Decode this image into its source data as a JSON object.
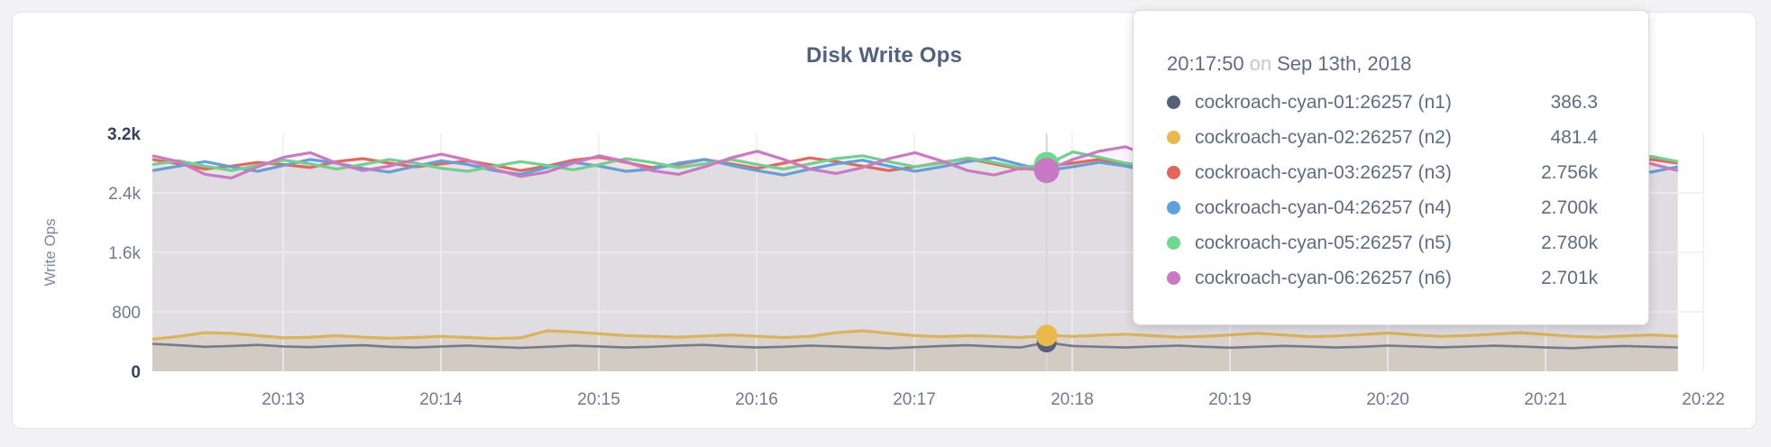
{
  "header": {
    "title": "Disk Write Ops"
  },
  "tooltip": {
    "time": "20:17:50",
    "separator": "on",
    "date": "Sep 13th, 2018",
    "rows": [
      {
        "label": "cockroach-cyan-01:26257 (n1)",
        "value": "386.3",
        "color": "#57607a"
      },
      {
        "label": "cockroach-cyan-02:26257 (n2)",
        "value": "481.4",
        "color": "#eab94d"
      },
      {
        "label": "cockroach-cyan-03:26257 (n3)",
        "value": "2.756k",
        "color": "#e5655c"
      },
      {
        "label": "cockroach-cyan-04:26257 (n4)",
        "value": "2.700k",
        "color": "#5ea2dd"
      },
      {
        "label": "cockroach-cyan-05:26257 (n5)",
        "value": "2.780k",
        "color": "#6fd88d"
      },
      {
        "label": "cockroach-cyan-06:26257 (n6)",
        "value": "2.701k",
        "color": "#c878c4"
      }
    ]
  },
  "chart_data": {
    "type": "line",
    "title": "Disk Write Ops",
    "xlabel": "",
    "ylabel": "Write Ops",
    "ylim": [
      0,
      3200
    ],
    "grid": true,
    "x_start": "20:12:10",
    "x_end": "20:21:50",
    "x_interval_seconds": 10,
    "x_tick_labels": [
      "20:13",
      "20:14",
      "20:15",
      "20:16",
      "20:17",
      "20:18",
      "20:19",
      "20:20",
      "20:21",
      "20:22"
    ],
    "y_ticks": [
      {
        "label": "0",
        "value": 0,
        "strong": true
      },
      {
        "label": "800",
        "value": 800,
        "strong": false
      },
      {
        "label": "1.6k",
        "value": 1600,
        "strong": false
      },
      {
        "label": "2.4k",
        "value": 2400,
        "strong": false
      },
      {
        "label": "3.2k",
        "value": 3200,
        "strong": true
      }
    ],
    "hover_time": "20:17:50",
    "hover_index": 34,
    "hover_dot_order": [
      3,
      2,
      0,
      1,
      4,
      5
    ],
    "series": [
      {
        "id": "n1",
        "name": "cockroach-cyan-01:26257 (n1)",
        "color": "#747b8c",
        "dot_color": "#57607a",
        "fill_opacity": 0.1,
        "width": 2.6,
        "dot_radius": 11,
        "values": [
          370,
          350,
          330,
          340,
          355,
          335,
          325,
          340,
          350,
          330,
          320,
          335,
          345,
          330,
          315,
          330,
          345,
          335,
          320,
          330,
          345,
          355,
          335,
          320,
          330,
          345,
          335,
          320,
          310,
          325,
          340,
          350,
          335,
          320,
          386.3,
          340,
          330,
          320,
          335,
          345,
          330,
          318,
          330,
          342,
          332,
          320,
          330,
          345,
          335,
          322,
          332,
          344,
          334,
          320,
          312,
          328,
          340,
          330,
          320
        ]
      },
      {
        "id": "n2",
        "name": "cockroach-cyan-02:26257 (n2)",
        "color": "#d9b35d",
        "dot_color": "#eab94d",
        "fill_opacity": 0.2,
        "width": 3.2,
        "dot_radius": 12,
        "values": [
          430,
          470,
          520,
          510,
          480,
          450,
          460,
          480,
          460,
          445,
          455,
          470,
          455,
          440,
          450,
          545,
          530,
          505,
          480,
          470,
          460,
          475,
          490,
          470,
          455,
          470,
          520,
          545,
          510,
          480,
          465,
          480,
          470,
          455,
          481.4,
          470,
          485,
          500,
          480,
          460,
          470,
          490,
          510,
          490,
          465,
          475,
          495,
          515,
          490,
          470,
          480,
          500,
          520,
          495,
          470,
          460,
          475,
          490,
          470
        ]
      },
      {
        "id": "n3",
        "name": "cockroach-cyan-03:26257 (n3)",
        "color": "#e0695f",
        "dot_color": "#e5655c",
        "fill_opacity": 0.09,
        "width": 3.2,
        "dot_radius": 13,
        "values": [
          2850,
          2790,
          2720,
          2760,
          2810,
          2780,
          2740,
          2820,
          2860,
          2800,
          2750,
          2790,
          2830,
          2770,
          2700,
          2760,
          2840,
          2880,
          2810,
          2740,
          2780,
          2850,
          2790,
          2730,
          2800,
          2870,
          2820,
          2760,
          2700,
          2750,
          2810,
          2860,
          2790,
          2720,
          2756,
          2800,
          2850,
          2780,
          2730,
          2790,
          2840,
          2800,
          2760,
          2820,
          2870,
          2810,
          2750,
          2790,
          2830,
          2780,
          2740,
          2800,
          2860,
          2820,
          2770,
          2730,
          2790,
          2850,
          2800
        ]
      },
      {
        "id": "n4",
        "name": "cockroach-cyan-04:26257 (n4)",
        "color": "#669fd4",
        "dot_color": "#5ea2dd",
        "fill_opacity": 0.09,
        "width": 3.2,
        "dot_radius": 13,
        "values": [
          2700,
          2760,
          2820,
          2750,
          2690,
          2770,
          2850,
          2800,
          2730,
          2680,
          2760,
          2830,
          2780,
          2700,
          2650,
          2740,
          2810,
          2760,
          2690,
          2720,
          2800,
          2850,
          2770,
          2700,
          2640,
          2720,
          2790,
          2840,
          2760,
          2690,
          2750,
          2820,
          2870,
          2780,
          2700,
          2750,
          2810,
          2760,
          2680,
          2730,
          2800,
          2850,
          2780,
          2710,
          2760,
          2830,
          2770,
          2700,
          2740,
          2810,
          2860,
          2780,
          2720,
          2770,
          2840,
          2790,
          2720,
          2680,
          2750
        ]
      },
      {
        "id": "n5",
        "name": "cockroach-cyan-05:26257 (n5)",
        "color": "#74ce92",
        "dot_color": "#6fd88d",
        "fill_opacity": 0.09,
        "width": 3.2,
        "dot_radius": 14,
        "values": [
          2780,
          2830,
          2760,
          2700,
          2770,
          2840,
          2790,
          2720,
          2780,
          2850,
          2800,
          2730,
          2690,
          2760,
          2820,
          2770,
          2710,
          2780,
          2860,
          2810,
          2740,
          2790,
          2850,
          2780,
          2720,
          2790,
          2860,
          2900,
          2820,
          2750,
          2800,
          2870,
          2810,
          2740,
          2780,
          2950,
          2880,
          2800,
          2750,
          2820,
          2890,
          2830,
          2760,
          2810,
          2880,
          2820,
          2750,
          2800,
          2870,
          2830,
          2770,
          2820,
          2880,
          2810,
          2750,
          2800,
          2860,
          2890,
          2820
        ]
      },
      {
        "id": "n6",
        "name": "cockroach-cyan-06:26257 (n6)",
        "color": "#c97ac1",
        "dot_color": "#c878c4",
        "fill_opacity": 0.09,
        "width": 3.2,
        "dot_radius": 14,
        "values": [
          2900,
          2820,
          2650,
          2600,
          2750,
          2880,
          2940,
          2800,
          2700,
          2760,
          2850,
          2920,
          2840,
          2720,
          2620,
          2680,
          2800,
          2900,
          2820,
          2700,
          2650,
          2750,
          2870,
          2960,
          2850,
          2720,
          2660,
          2740,
          2860,
          2940,
          2830,
          2700,
          2640,
          2730,
          2701,
          2850,
          2960,
          3020,
          2880,
          2740,
          2680,
          2780,
          2900,
          2820,
          2700,
          2750,
          2870,
          2930,
          2810,
          2690,
          2730,
          2850,
          2920,
          2800,
          2680,
          2740,
          2860,
          2790,
          2700
        ]
      }
    ]
  }
}
